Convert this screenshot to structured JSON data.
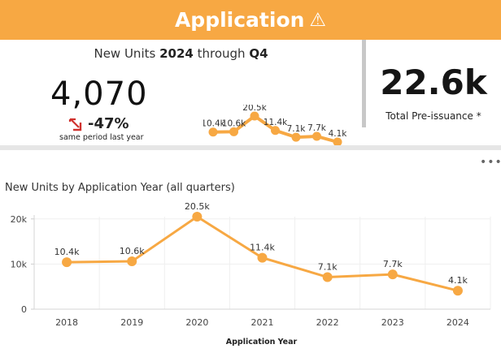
{
  "banner": {
    "title": "Application",
    "icon": "warning-icon",
    "icon_glyph": "⚠",
    "color": "#f7a843"
  },
  "kpi": {
    "heading_prefix": "New Units ",
    "heading_year": "2024",
    "heading_mid": " through ",
    "heading_quarter": "Q4",
    "value": "4,070",
    "change_icon": "arrow-down-right-icon",
    "change": "-47%",
    "change_color": "#d0312d",
    "subtitle": "same period last year",
    "sparkline": {
      "labels": [
        "10.4k",
        "10.6k",
        "20.5k",
        "11.4k",
        "7.1k",
        "7.7k",
        "4.1k"
      ],
      "values": [
        10400,
        10600,
        20500,
        11400,
        7100,
        7700,
        4100
      ]
    }
  },
  "total": {
    "value": "22.6k",
    "label": "Total Pre-issuance *"
  },
  "panel": {
    "more_label": "•••",
    "title": "New Units by Application Year (all quarters)"
  },
  "chart_data": {
    "type": "line",
    "title": "New Units by Application Year (all quarters)",
    "xlabel": "Application Year",
    "ylabel": "",
    "categories": [
      "2018",
      "2019",
      "2020",
      "2021",
      "2022",
      "2023",
      "2024"
    ],
    "series": [
      {
        "name": "New Units",
        "values": [
          10400,
          10600,
          20500,
          11400,
          7100,
          7700,
          4100
        ],
        "labels": [
          "10.4k",
          "10.6k",
          "20.5k",
          "11.4k",
          "7.1k",
          "7.7k",
          "4.1k"
        ],
        "color": "#f7a843"
      }
    ],
    "ylim": [
      0,
      20500
    ],
    "yticks": [
      0,
      10000,
      20000
    ],
    "ytick_labels": [
      "0",
      "10k",
      "20k"
    ],
    "grid": true,
    "legend": "none"
  }
}
